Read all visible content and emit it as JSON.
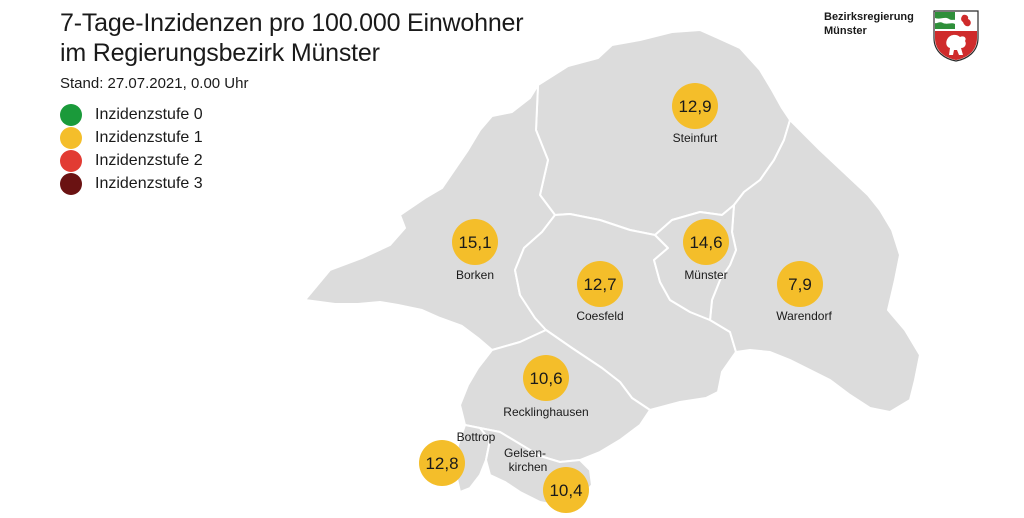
{
  "title": {
    "line1": "7-Tage-Inzidenzen pro 100.000 Einwohner",
    "line2": "im Regierungsbezirk Münster"
  },
  "stand": "Stand: 27.07.2021, 0.00 Uhr",
  "legend": [
    {
      "label": "Inzidenzstufe 0",
      "color": "#1a9a3a"
    },
    {
      "label": "Inzidenzstufe 1",
      "color": "#f4be2a"
    },
    {
      "label": "Inzidenzstufe 2",
      "color": "#e23b33"
    },
    {
      "label": "Inzidenzstufe 3",
      "color": "#6a1212"
    }
  ],
  "brand": {
    "line1": "Bezirksregierung",
    "line2": "Münster"
  },
  "map_colors": {
    "region_fill": "#dcdcdc",
    "border": "#ffffff",
    "bubble": "#f4be2a"
  },
  "regions": [
    {
      "id": "steinfurt",
      "name": "Steinfurt",
      "value": "12,9"
    },
    {
      "id": "borken",
      "name": "Borken",
      "value": "15,1"
    },
    {
      "id": "muenster",
      "name": "Münster",
      "value": "14,6"
    },
    {
      "id": "coesfeld",
      "name": "Coesfeld",
      "value": "12,7"
    },
    {
      "id": "warendorf",
      "name": "Warendorf",
      "value": "7,9"
    },
    {
      "id": "recklinghausen",
      "name": "Recklinghausen",
      "value": "10,6"
    },
    {
      "id": "bottrop",
      "name": "Bottrop",
      "value": "12,8"
    },
    {
      "id": "gelsenkirchen",
      "name_line1": "Gelsen-",
      "name_line2": "kirchen",
      "value": "10,4"
    }
  ]
}
